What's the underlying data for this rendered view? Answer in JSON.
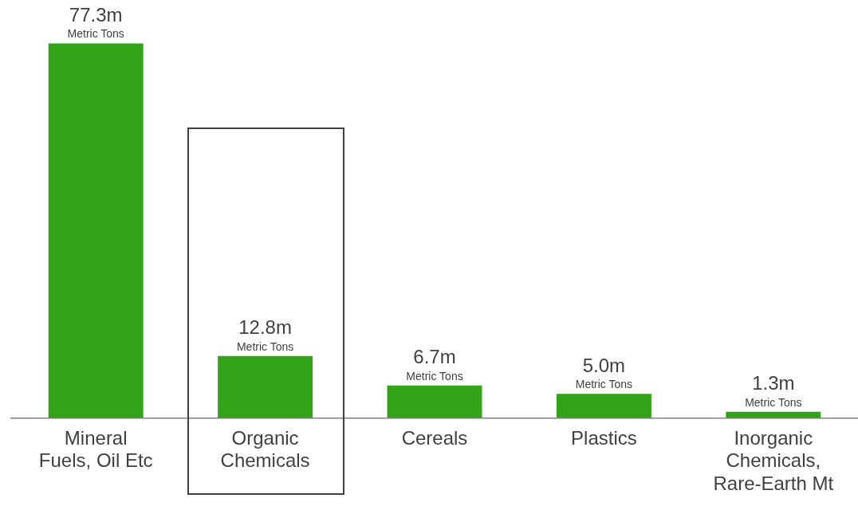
{
  "chart_data": {
    "type": "bar",
    "categories": [
      "Mineral\nFuels, Oil Etc",
      "Organic\nChemicals",
      "Cereals",
      "Plastics",
      "Inorganic\nChemicals,\nRare-Earth Mt"
    ],
    "values": [
      77.3,
      12.8,
      6.7,
      5.0,
      1.3
    ],
    "color": "#33a318",
    "value_labels": [
      "77.3m",
      "12.8m",
      "6.7m",
      "5.0m",
      "1.3m"
    ],
    "annotations": [
      {
        "text": "Metric Tons",
        "x": "Mineral\nFuels, Oil Etc",
        "y": 77.3
      },
      {
        "text": "Metric Tons",
        "x": "Organic\nChemicals",
        "y": 12.8
      },
      {
        "text": "Metric Tons",
        "x": "Cereals",
        "y": 6.7
      },
      {
        "text": "Metric Tons",
        "x": "Plastics",
        "y": 5.0
      },
      {
        "text": "Metric Tons",
        "x": "Inorganic\nChemicals,\nRare-Earth Mt",
        "y": 1.3
      }
    ],
    "tick_labels": "x",
    "grid": false,
    "legend": false
  }
}
